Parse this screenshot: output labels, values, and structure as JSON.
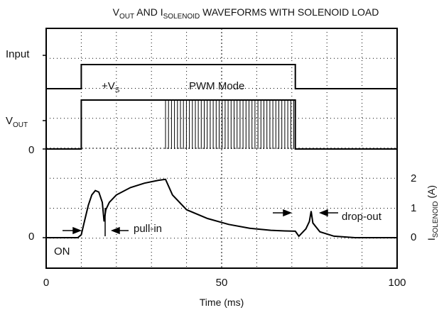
{
  "chart_data": {
    "type": "line",
    "title": {
      "prefix_v": "V",
      "sub_v": "OUT",
      "mid": " AND I",
      "sub_i": "SOLENOID",
      "suffix": " WAVEFORMS WITH SOLENOID LOAD"
    },
    "xlabel": "Time (ms)",
    "xlim": [
      0,
      100
    ],
    "x_ticks": [
      "0",
      "50",
      "100"
    ],
    "grid": true,
    "left_labels": {
      "input": "Input",
      "vout_main": "V",
      "vout_sub": "OUT",
      "zero_top": "0",
      "zero_bottom": "0"
    },
    "right_axis": {
      "label_main": "I",
      "label_sub": "SOLENOID",
      "label_unit": " (A)",
      "ticks": [
        "2",
        "1",
        "0"
      ],
      "ylim": [
        -0.6,
        2.6
      ]
    },
    "annotations": {
      "vs_main": "+V",
      "vs_sub": "S",
      "pwm": "PWM Mode",
      "pull_in": "pull-in",
      "drop_out": "drop-out",
      "on": "ON"
    },
    "series": [
      {
        "id": "input",
        "x": [
          0,
          10,
          10,
          71,
          71,
          100
        ],
        "y": [
          0,
          0,
          1,
          1,
          0,
          0
        ]
      },
      {
        "id": "vout",
        "x": [
          0,
          10,
          10,
          34,
          71,
          71,
          100
        ],
        "y": [
          0,
          0,
          1,
          1,
          1,
          0,
          0
        ],
        "pwm_window": [
          34,
          71
        ],
        "pwm_low_level": 0
      },
      {
        "id": "current",
        "x": [
          0,
          9,
          10,
          11,
          12,
          13,
          14,
          15,
          16,
          16.5,
          17,
          18,
          20,
          24,
          28,
          32,
          34,
          36,
          40,
          46,
          52,
          58,
          64,
          68,
          71,
          72,
          74,
          75,
          75.5,
          76,
          78,
          82,
          88,
          100
        ],
        "y": [
          0,
          0,
          0.1,
          0.6,
          1.1,
          1.45,
          1.6,
          1.55,
          1.2,
          0.55,
          0.95,
          1.2,
          1.45,
          1.7,
          1.85,
          1.95,
          1.98,
          1.45,
          0.95,
          0.65,
          0.45,
          0.32,
          0.25,
          0.23,
          0.22,
          0.05,
          0.3,
          0.55,
          0.9,
          0.5,
          0.2,
          0.05,
          0,
          0
        ]
      }
    ]
  }
}
